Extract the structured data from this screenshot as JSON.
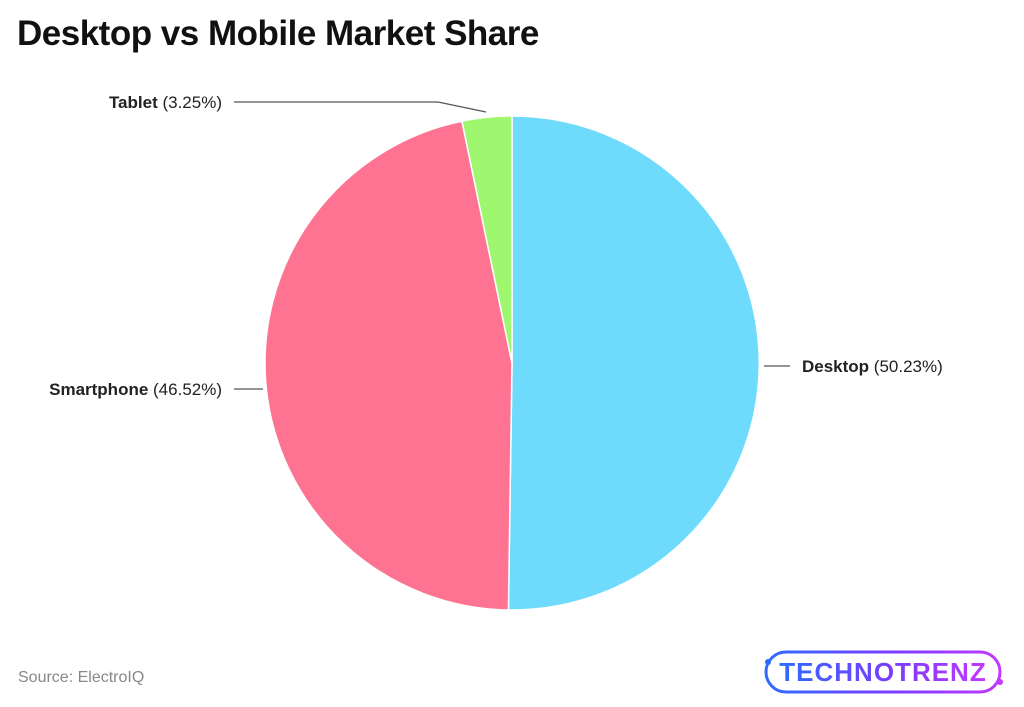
{
  "title": "Desktop vs Mobile Market Share",
  "source": "Source: ElectroIQ",
  "logo_text": "TECHNOTRENZ",
  "chart_data": {
    "type": "pie",
    "title": "Desktop vs Mobile Market Share",
    "slices": [
      {
        "label": "Desktop",
        "value": 50.23,
        "value_label": "(50.23%)",
        "color": "#6fdbfc"
      },
      {
        "label": "Smartphone",
        "value": 46.52,
        "value_label": "(46.52%)",
        "color": "#fe7392"
      },
      {
        "label": "Tablet",
        "value": 3.25,
        "value_label": "(3.25%)",
        "color": "#9ef76f"
      }
    ],
    "start": "12 o'clock, clockwise",
    "legend": "none",
    "labels": "outside with leader lines"
  }
}
